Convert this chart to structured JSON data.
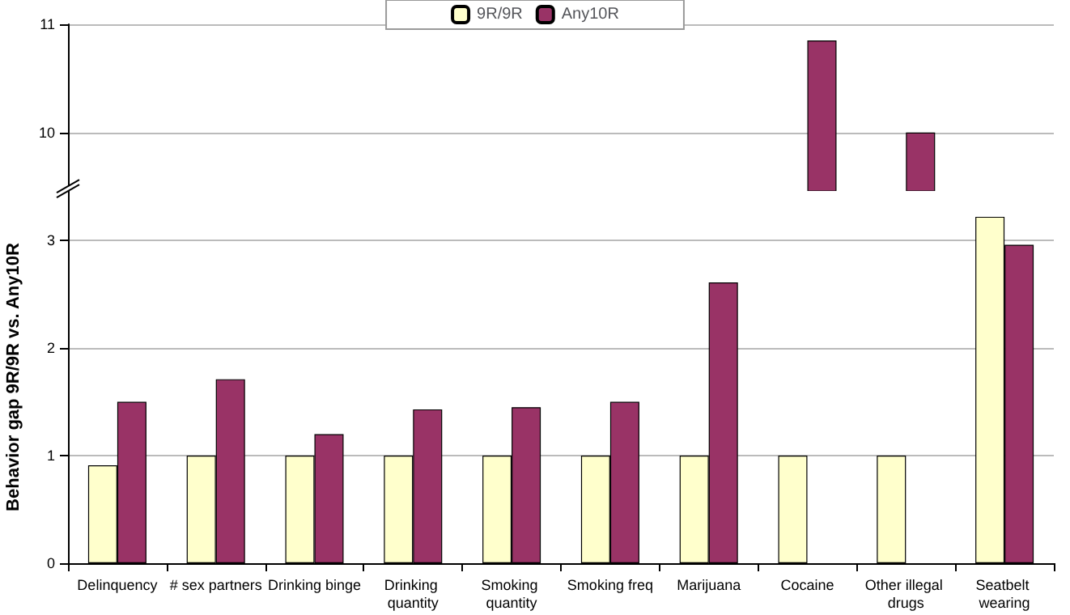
{
  "chart_data": [
    {
      "type": "bar",
      "categories": [
        "Delinquency",
        "# sex partners",
        "Drinking binge",
        "Drinking quantity",
        "Smoking quantity",
        "Smoking freq",
        "Marijuana",
        "Cocaine",
        "Other illegal drugs",
        "Seatbelt wearing"
      ],
      "series": [
        {
          "name": "9R/9R",
          "color": "#ffffcc",
          "values": [
            null,
            null,
            null,
            null,
            null,
            null,
            null,
            null,
            null,
            null
          ]
        },
        {
          "name": "Any10R",
          "color": "#993366",
          "values": [
            null,
            null,
            null,
            null,
            null,
            null,
            null,
            10.85,
            10.0,
            null
          ]
        }
      ],
      "ylim": [
        9.46,
        11
      ],
      "yticks": [
        10,
        11
      ],
      "grid": "y",
      "legend": "top",
      "tick_labels": "y"
    },
    {
      "type": "bar",
      "ylabel": "Behavior gap 9R/9R vs. Any10R",
      "categories": [
        "Delinquency",
        "# sex partners",
        "Drinking binge",
        "Drinking quantity",
        "Smoking quantity",
        "Smoking freq",
        "Marijuana",
        "Cocaine",
        "Other illegal drugs",
        "Seatbelt wearing"
      ],
      "series": [
        {
          "color": "#ffffcc",
          "values": [
            0.91,
            1,
            1,
            1,
            1,
            1,
            1,
            1,
            1,
            3.22
          ]
        },
        {
          "color": "#993366",
          "values": [
            1.5,
            1.71,
            1.2,
            1.43,
            1.45,
            1.5,
            2.61,
            null,
            null,
            2.96
          ]
        }
      ],
      "ylim": [
        0,
        3.46
      ],
      "yticks": [
        0,
        1,
        2,
        3
      ],
      "grid": "y"
    }
  ]
}
